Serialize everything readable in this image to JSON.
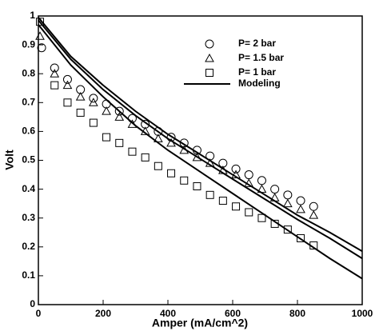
{
  "chart_data": {
    "type": "scatter",
    "x_label": "Amper (mA/cm^2)",
    "y_label": "Volt",
    "xlim": [
      0,
      1000
    ],
    "xticks": [
      0,
      200,
      400,
      600,
      800,
      1000
    ],
    "ylim": [
      0,
      1
    ],
    "yticks": [
      0,
      0.1,
      0.2,
      0.3,
      0.4,
      0.5,
      0.6,
      0.7,
      0.8,
      0.9,
      1
    ],
    "legend": "upper-right",
    "series": [
      {
        "name": "P= 2 bar",
        "marker": "circle",
        "color": "#000000",
        "x": [
          10,
          50,
          90,
          130,
          170,
          210,
          250,
          290,
          330,
          370,
          410,
          450,
          490,
          530,
          570,
          610,
          650,
          690,
          730,
          770,
          810,
          850
        ],
        "values": [
          0.89,
          0.82,
          0.78,
          0.745,
          0.715,
          0.695,
          0.67,
          0.645,
          0.625,
          0.6,
          0.58,
          0.56,
          0.535,
          0.515,
          0.49,
          0.47,
          0.45,
          0.43,
          0.4,
          0.38,
          0.36,
          0.34
        ]
      },
      {
        "name": "P= 1.5 bar",
        "marker": "triangle",
        "color": "#000000",
        "x": [
          5,
          50,
          90,
          130,
          170,
          210,
          250,
          290,
          330,
          370,
          410,
          450,
          490,
          530,
          570,
          610,
          650,
          690,
          730,
          770,
          810,
          850
        ],
        "values": [
          0.93,
          0.8,
          0.76,
          0.72,
          0.7,
          0.67,
          0.65,
          0.625,
          0.6,
          0.575,
          0.56,
          0.535,
          0.51,
          0.49,
          0.465,
          0.45,
          0.42,
          0.4,
          0.37,
          0.35,
          0.33,
          0.31
        ]
      },
      {
        "name": "P= 1 bar",
        "marker": "square",
        "color": "#000000",
        "x": [
          5,
          50,
          90,
          130,
          170,
          210,
          250,
          290,
          330,
          370,
          410,
          450,
          490,
          530,
          570,
          610,
          650,
          690,
          730,
          770,
          810,
          850
        ],
        "values": [
          0.98,
          0.76,
          0.7,
          0.665,
          0.63,
          0.58,
          0.56,
          0.53,
          0.51,
          0.48,
          0.455,
          0.43,
          0.41,
          0.38,
          0.36,
          0.34,
          0.32,
          0.3,
          0.28,
          0.26,
          0.23,
          0.205
        ]
      }
    ],
    "model_name": "Modeling",
    "model_x": [
      0,
      100,
      200,
      300,
      400,
      500,
      600,
      700,
      800,
      900,
      1000
    ],
    "model_lines": [
      [
        0.995,
        0.86,
        0.76,
        0.67,
        0.59,
        0.52,
        0.45,
        0.38,
        0.31,
        0.25,
        0.185
      ],
      [
        0.985,
        0.85,
        0.745,
        0.655,
        0.575,
        0.505,
        0.435,
        0.365,
        0.295,
        0.23,
        0.16
      ],
      [
        0.97,
        0.83,
        0.72,
        0.62,
        0.535,
        0.46,
        0.385,
        0.31,
        0.235,
        0.16,
        0.09
      ]
    ],
    "model_color": "#000000"
  }
}
